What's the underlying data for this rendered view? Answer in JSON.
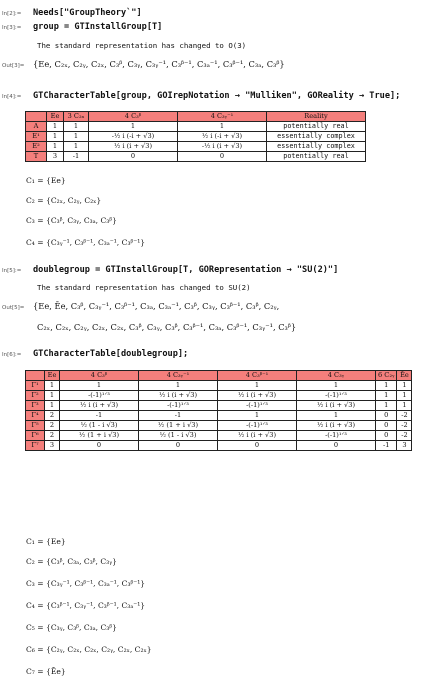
{
  "inputs": [
    {
      "label": "In[2]:=",
      "code": "Needs[\"GroupTheory`\"]"
    },
    {
      "label": "In[3]:=",
      "code": "group = GTInstallGroup[T]"
    },
    {
      "label": "In[4]:=",
      "code": "GTCharacterTable[group, GOIrepNotation → \"Mulliken\", GOReality → True];"
    },
    {
      "label": "In[5]:=",
      "code": "doublegroup = GTInstallGroup[T, GORepresentation → \"SU(2)\"]"
    },
    {
      "label": "In[6]:=",
      "code": "GTCharacterTable[doublegroup];"
    }
  ],
  "messages": {
    "m1": "The standard representation has changed to O(3)",
    "m2": "The standard representation has changed to SU(2)"
  },
  "outputs": {
    "out3_label": "Out[3]=",
    "out3": "{Ee, C₂ₓ, C₂ᵧ, C₂ₓ, C₃ᵝ, C₃ᵧ, C₃ᵧ⁻¹, C₃ᵝ⁻¹, C₃ₐ⁻¹, C₃ᵝ⁻¹, C₃ₐ, C₃ᵝ}",
    "out5_label": "Out[5]=",
    "out5_line1": "{Ee, Ēe, C₃ᵝ, C₃ᵧ⁻¹, C₃ᵝ⁻¹, C₃ₐ, C₃ₐ⁻¹, C₃ᵝ, C₃ᵧ, C₃ᵝ⁻¹, C₃ᵝ, C₂ᵧ,",
    "out5_line2": "C₂ₓ, C₂ₓ, C₂ᵧ, C₂ₓ, C₂ₓ, C₃ᵝ, C₃ᵧ, C₃ᵝ, C₃ᵝ⁻¹, C₃ₐ, C₃ᵝ⁻¹, C₃ᵧ⁻¹, C₃ᵝ}"
  },
  "table1": {
    "header": [
      "",
      "Ee",
      "3 C₂ₓ",
      "4 C₃ᵝ",
      "4 C₃ᵧ⁻¹",
      "Reality"
    ],
    "rows": [
      {
        "name": "A",
        "cells": [
          "1",
          "1",
          "1",
          "1",
          "potentially real"
        ]
      },
      {
        "name": "E¹",
        "cells": [
          "1",
          "1",
          "-½ i (-i + √3)",
          "½ i (-i + √3)",
          "essentially complex"
        ]
      },
      {
        "name": "E²",
        "cells": [
          "1",
          "1",
          "½ i (i + √3)",
          "-½ i (i + √3)",
          "essentially complex"
        ]
      },
      {
        "name": "T",
        "cells": [
          "3",
          "-1",
          "0",
          "0",
          "potentially real"
        ]
      }
    ]
  },
  "classes1": [
    "C₁ = {Ee}",
    "C₂ = {C₂ₓ, C₂ᵧ, C₂ₓ}",
    "C₃ = {C₃ᵝ, C₃ᵧ, C₃ₐ, C₃ᵝ}",
    "C₄ = {C₃ᵧ⁻¹, C₃ᵝ⁻¹, C₃ₐ⁻¹, C₃ᵝ⁻¹}"
  ],
  "table2": {
    "header": [
      "",
      "Ee",
      "4 C₃ᵝ",
      "4 C₃ᵧ⁻¹",
      "4 C₃ᵝ⁻¹",
      "4 C₃ᵧ",
      "6 C₂ᵧ",
      "Ēe"
    ],
    "rows": [
      {
        "name": "Γ¹",
        "cells": [
          "1",
          "1",
          "1",
          "1",
          "1",
          "1",
          "1"
        ]
      },
      {
        "name": "Γ²",
        "cells": [
          "1",
          "-(-1)¹ᐟ³",
          "½ i (i + √3)",
          "½ i (i + √3)",
          "-(-1)¹ᐟ³",
          "1",
          "1"
        ]
      },
      {
        "name": "Γ³",
        "cells": [
          "1",
          "½ i (i + √3)",
          "-(-1)¹ᐟ³",
          "-(-1)¹ᐟ³",
          "½ i (i + √3)",
          "1",
          "1"
        ]
      },
      {
        "name": "Γ⁴",
        "cells": [
          "2",
          "-1",
          "-1",
          "1",
          "1",
          "0",
          "-2"
        ]
      },
      {
        "name": "Γ⁵",
        "cells": [
          "2",
          "½ (1 - i √3)",
          "½ (1 + i √3)",
          "-(-1)¹ᐟ³",
          "½ i (i + √3)",
          "0",
          "-2"
        ]
      },
      {
        "name": "Γ⁶",
        "cells": [
          "2",
          "½ (1 + i √3)",
          "½ (1 - i √3)",
          "½ i (i + √3)",
          "-(-1)¹ᐟ³",
          "0",
          "-2"
        ]
      },
      {
        "name": "Γ⁷",
        "cells": [
          "3",
          "0",
          "0",
          "0",
          "0",
          "-1",
          "3"
        ]
      }
    ]
  },
  "classes2": [
    "C₁ = {Ee}",
    "C₂ = {C₃ᵝ, C₃ₐ, C₃ᵝ, C₃ᵧ}",
    "C₃ = {C₃ᵧ⁻¹, C₃ᵝ⁻¹, C₃ₐ⁻¹, C₃ᵝ⁻¹}",
    "C₄ = {C₃ᵝ⁻¹, C₃ᵧ⁻¹, C₃ᵝ⁻¹, C₃ₐ⁻¹}",
    "C₅ = {C₃ᵧ, C₃ᵝ, C₃ₐ, C₃ᵝ}",
    "C₆ = {C₂ᵧ, C₂ₓ, C₂ₓ, C₂ᵧ, C₂ₓ, C₂ₓ}",
    "C₇ = {Ēe}"
  ]
}
